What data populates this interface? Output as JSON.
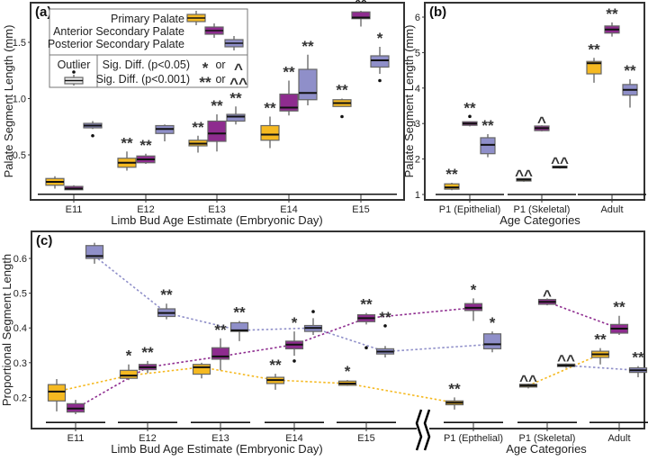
{
  "legend": {
    "series": [
      "Primary Palate",
      "Anterior Secondary Palate",
      "Posterior Secondary Palate"
    ],
    "outlier": "Outlier",
    "sig1": "Sig. Diff. (p<0.05)",
    "sig2": "Sig. Diff. (p<0.001)",
    "sym1a": "*",
    "sym1b": "^",
    "sym2a": "**",
    "sym2b": "^^",
    "or": "or"
  },
  "colors": {
    "primary": "#F5B921",
    "anterior": "#8E2C8F",
    "posterior": "#8F8FC9"
  },
  "chart_data": [
    {
      "panel": "(a)",
      "type": "box",
      "ylabel": "Palate Segment Length (mm)",
      "xlabel": "Limb Bud Age Estimate (Embryonic Day)",
      "yticks": [
        0.5,
        1.0,
        1.5
      ],
      "ytick_labels": [
        "0.5",
        "1.0",
        "1.5"
      ],
      "categories": [
        "E11",
        "E12",
        "E13",
        "E14",
        "E15"
      ],
      "series": [
        {
          "name": "Primary Palate",
          "boxes": [
            {
              "min": 0.2,
              "q1": 0.23,
              "median": 0.26,
              "q3": 0.29,
              "max": 0.31,
              "outliers": [],
              "sig": ""
            },
            {
              "min": 0.36,
              "q1": 0.39,
              "median": 0.43,
              "q3": 0.47,
              "max": 0.53,
              "outliers": [],
              "sig": "**"
            },
            {
              "min": 0.52,
              "q1": 0.58,
              "median": 0.6,
              "q3": 0.63,
              "max": 0.67,
              "outliers": [],
              "sig": "**"
            },
            {
              "min": 0.56,
              "q1": 0.63,
              "median": 0.68,
              "q3": 0.76,
              "max": 0.84,
              "outliers": [],
              "sig": "**"
            },
            {
              "min": 0.93,
              "q1": 0.93,
              "median": 0.96,
              "q3": 0.99,
              "max": 1.0,
              "outliers": [
                0.84
              ],
              "sig": "**"
            }
          ]
        },
        {
          "name": "Anterior Secondary Palate",
          "boxes": [
            {
              "min": 0.19,
              "q1": 0.19,
              "median": 0.2,
              "q3": 0.22,
              "max": 0.23,
              "outliers": [],
              "sig": ""
            },
            {
              "min": 0.42,
              "q1": 0.43,
              "median": 0.46,
              "q3": 0.49,
              "max": 0.51,
              "outliers": [],
              "sig": "**"
            },
            {
              "min": 0.53,
              "q1": 0.62,
              "median": 0.69,
              "q3": 0.8,
              "max": 0.86,
              "outliers": [],
              "sig": "**"
            },
            {
              "min": 0.85,
              "q1": 0.89,
              "median": 0.92,
              "q3": 1.04,
              "max": 1.16,
              "outliers": [],
              "sig": "**"
            },
            {
              "min": 1.64,
              "q1": 1.71,
              "median": 1.72,
              "q3": 1.77,
              "max": 1.78,
              "outliers": [],
              "sig": "**"
            }
          ]
        },
        {
          "name": "Posterior Secondary Palate",
          "boxes": [
            {
              "min": 0.73,
              "q1": 0.74,
              "median": 0.76,
              "q3": 0.78,
              "max": 0.8,
              "outliers": [
                0.67
              ],
              "sig": ""
            },
            {
              "min": 0.62,
              "q1": 0.69,
              "median": 0.73,
              "q3": 0.76,
              "max": 0.77,
              "outliers": [],
              "sig": ""
            },
            {
              "min": 0.77,
              "q1": 0.8,
              "median": 0.84,
              "q3": 0.86,
              "max": 0.93,
              "outliers": [],
              "sig": "**"
            },
            {
              "min": 0.94,
              "q1": 0.99,
              "median": 1.05,
              "q3": 1.26,
              "max": 1.39,
              "outliers": [],
              "sig": "**"
            },
            {
              "min": 1.22,
              "q1": 1.28,
              "median": 1.34,
              "q3": 1.38,
              "max": 1.46,
              "outliers": [
                1.16
              ],
              "sig": "*"
            }
          ]
        }
      ]
    },
    {
      "panel": "(b)",
      "type": "box",
      "ylabel": "Palate Segment Length (mm)",
      "xlabel": "Age Categories",
      "yticks": [
        1,
        2,
        3,
        4,
        5,
        6
      ],
      "ytick_labels": [
        "1",
        "2",
        "3",
        "4",
        "5",
        "6"
      ],
      "categories": [
        "P1 (Epithelial)",
        "P1 (Skeletal)",
        "Adult"
      ],
      "series": [
        {
          "name": "Primary Palate",
          "boxes": [
            {
              "min": 1.12,
              "q1": 1.15,
              "median": 1.2,
              "q3": 1.3,
              "max": 1.33,
              "outliers": [],
              "sig": "**"
            },
            {
              "min": 1.36,
              "q1": 1.38,
              "median": 1.42,
              "q3": 1.45,
              "max": 1.46,
              "outliers": [],
              "sig": "^^"
            },
            {
              "min": 4.15,
              "q1": 4.4,
              "median": 4.7,
              "q3": 4.75,
              "max": 4.85,
              "outliers": [],
              "sig": "**"
            }
          ]
        },
        {
          "name": "Anterior Secondary Palate",
          "boxes": [
            {
              "min": 2.92,
              "q1": 2.95,
              "median": 3.0,
              "q3": 3.05,
              "max": 3.06,
              "outliers": [
                3.2
              ],
              "sig": "**"
            },
            {
              "min": 2.78,
              "q1": 2.8,
              "median": 2.87,
              "q3": 2.93,
              "max": 2.95,
              "outliers": [],
              "sig": "^"
            },
            {
              "min": 5.45,
              "q1": 5.55,
              "median": 5.65,
              "q3": 5.75,
              "max": 5.85,
              "outliers": [],
              "sig": "**"
            }
          ]
        },
        {
          "name": "Posterior Secondary Palate",
          "boxes": [
            {
              "min": 2.05,
              "q1": 2.15,
              "median": 2.4,
              "q3": 2.6,
              "max": 2.7,
              "outliers": [],
              "sig": "**"
            },
            {
              "min": 1.73,
              "q1": 1.75,
              "median": 1.77,
              "q3": 1.8,
              "max": 1.81,
              "outliers": [],
              "sig": "^^"
            },
            {
              "min": 3.45,
              "q1": 3.8,
              "median": 3.95,
              "q3": 4.1,
              "max": 4.25,
              "outliers": [],
              "sig": "**"
            }
          ]
        }
      ]
    },
    {
      "panel": "(c)",
      "type": "box",
      "ylabel": "Proportional Segment Length",
      "xlabel": "Limb Bud Age Estimate (Embryonic Day)",
      "xlabel2": "Age Categories",
      "yticks": [
        0.2,
        0.3,
        0.4,
        0.5,
        0.6
      ],
      "ytick_labels": [
        "0.2",
        "0.3",
        "0.4",
        "0.5",
        "0.6"
      ],
      "categories": [
        "E11",
        "E12",
        "E13",
        "E14",
        "E15",
        "P1 (Epthelial)",
        "P1 (Skeletal)",
        "Adult"
      ],
      "connected_groups": [
        [
          0,
          1,
          2,
          3,
          4,
          5
        ],
        [
          6,
          7
        ]
      ],
      "series": [
        {
          "name": "Primary Palate",
          "boxes": [
            {
              "min": 0.16,
              "q1": 0.19,
              "median": 0.217,
              "q3": 0.237,
              "max": 0.253,
              "outliers": [],
              "sig": ""
            },
            {
              "min": 0.25,
              "q1": 0.255,
              "median": 0.263,
              "q3": 0.278,
              "max": 0.295,
              "outliers": [],
              "sig": "*"
            },
            {
              "min": 0.255,
              "q1": 0.267,
              "median": 0.287,
              "q3": 0.295,
              "max": 0.3,
              "outliers": [],
              "sig": ""
            },
            {
              "min": 0.222,
              "q1": 0.24,
              "median": 0.25,
              "q3": 0.258,
              "max": 0.268,
              "outliers": [],
              "sig": "**"
            },
            {
              "min": 0.233,
              "q1": 0.235,
              "median": 0.24,
              "q3": 0.247,
              "max": 0.25,
              "outliers": [],
              "sig": "*"
            },
            {
              "min": 0.165,
              "q1": 0.179,
              "median": 0.185,
              "q3": 0.19,
              "max": 0.2,
              "outliers": [],
              "sig": "**"
            },
            {
              "min": 0.226,
              "q1": 0.23,
              "median": 0.234,
              "q3": 0.238,
              "max": 0.24,
              "outliers": [],
              "sig": "^^"
            },
            {
              "min": 0.295,
              "q1": 0.315,
              "median": 0.324,
              "q3": 0.333,
              "max": 0.342,
              "outliers": [],
              "sig": "**"
            }
          ]
        },
        {
          "name": "Anterior Secondary Palate",
          "boxes": [
            {
              "min": 0.152,
              "q1": 0.158,
              "median": 0.168,
              "q3": 0.182,
              "max": 0.193,
              "outliers": [],
              "sig": ""
            },
            {
              "min": 0.27,
              "q1": 0.28,
              "median": 0.287,
              "q3": 0.295,
              "max": 0.305,
              "outliers": [],
              "sig": "**"
            },
            {
              "min": 0.278,
              "q1": 0.31,
              "median": 0.318,
              "q3": 0.343,
              "max": 0.37,
              "outliers": [],
              "sig": "**"
            },
            {
              "min": 0.32,
              "q1": 0.34,
              "median": 0.352,
              "q3": 0.362,
              "max": 0.39,
              "outliers": [
                0.305
              ],
              "sig": "*"
            },
            {
              "min": 0.41,
              "q1": 0.418,
              "median": 0.428,
              "q3": 0.438,
              "max": 0.443,
              "outliers": [
                0.343
              ],
              "sig": "**"
            },
            {
              "min": 0.42,
              "q1": 0.45,
              "median": 0.458,
              "q3": 0.47,
              "max": 0.485,
              "outliers": [],
              "sig": "*"
            },
            {
              "min": 0.465,
              "q1": 0.468,
              "median": 0.475,
              "q3": 0.482,
              "max": 0.485,
              "outliers": [],
              "sig": "^"
            },
            {
              "min": 0.38,
              "q1": 0.385,
              "median": 0.398,
              "q3": 0.41,
              "max": 0.435,
              "outliers": [],
              "sig": "**"
            }
          ]
        },
        {
          "name": "Posterior Secondary Palate",
          "boxes": [
            {
              "min": 0.585,
              "q1": 0.6,
              "median": 0.607,
              "q3": 0.637,
              "max": 0.645,
              "outliers": [],
              "sig": ""
            },
            {
              "min": 0.425,
              "q1": 0.433,
              "median": 0.443,
              "q3": 0.455,
              "max": 0.47,
              "outliers": [],
              "sig": "**"
            },
            {
              "min": 0.362,
              "q1": 0.39,
              "median": 0.393,
              "q3": 0.415,
              "max": 0.42,
              "outliers": [],
              "sig": "**"
            },
            {
              "min": 0.38,
              "q1": 0.39,
              "median": 0.4,
              "q3": 0.407,
              "max": 0.428,
              "outliers": [
                0.447
              ],
              "sig": ""
            },
            {
              "min": 0.315,
              "q1": 0.325,
              "median": 0.332,
              "q3": 0.34,
              "max": 0.348,
              "outliers": [
                0.406
              ],
              "sig": "**"
            },
            {
              "min": 0.33,
              "q1": 0.34,
              "median": 0.353,
              "q3": 0.383,
              "max": 0.39,
              "outliers": [],
              "sig": "*"
            },
            {
              "min": 0.285,
              "q1": 0.289,
              "median": 0.292,
              "q3": 0.296,
              "max": 0.298,
              "outliers": [],
              "sig": "^^"
            },
            {
              "min": 0.258,
              "q1": 0.272,
              "median": 0.278,
              "q3": 0.285,
              "max": 0.29,
              "outliers": [],
              "sig": "**"
            }
          ]
        }
      ]
    }
  ]
}
